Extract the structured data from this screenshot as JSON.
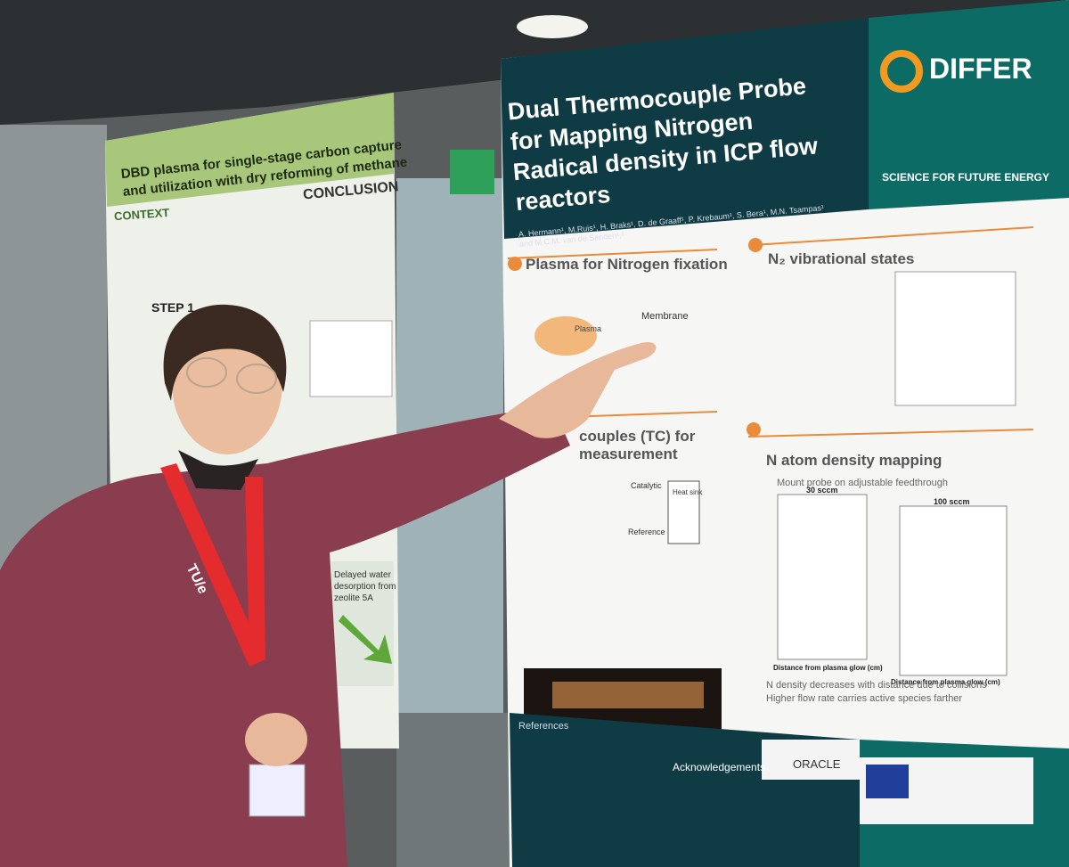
{
  "right_poster": {
    "title_lines": [
      "Dual Thermocouple Probe",
      "for Mapping Nitrogen",
      "Radical density in ICP flow",
      "reactors"
    ],
    "logo": "DIFFER",
    "tagline": "SCIENCE FOR FUTURE ENERGY",
    "authors": [
      "A. Hermann¹, M.Ruis¹, H. Braks¹, D. de Graaff¹, P. Krebaum¹, S. Bera¹, M.N. Tsampas¹",
      "and M.C.M. van de Sanden¹,²"
    ],
    "sections": {
      "plasma": "Plasma for Nitrogen fixation",
      "vibrational": "N₂ vibrational states",
      "thermocouples": [
        "couples (TC) for",
        "measurement"
      ],
      "density": "N atom density mapping"
    },
    "diagram_labels": {
      "membrane": "Membrane",
      "catalytic": "Catalytic",
      "heat_sink": "Heat sink",
      "reference": "Reference",
      "plasma": "Plasma"
    },
    "density_bullets": [
      "Mount probe on adjustable feedthrough",
      "N density decreases with distance due to collisions",
      "Higher flow rate carries active species farther"
    ],
    "charts": {
      "left_title": "30 sccm",
      "right_title": "100 sccm",
      "x_label": "Distance from plasma glow (cm)"
    },
    "footer": {
      "references": "References",
      "acknowledgements": "Acknowledgements",
      "sponsor": "ORACLE"
    }
  },
  "left_poster": {
    "title_lines": [
      "DBD plasma for single-stage carbon capture",
      "and utilization with dry reforming of methane"
    ],
    "conclusion": "CONCLUSION",
    "context": "CONTEXT",
    "step": "STEP 1",
    "note": [
      "Delayed water",
      "desorption from",
      "zeolite 5A"
    ]
  },
  "lanyard": "TU/e"
}
